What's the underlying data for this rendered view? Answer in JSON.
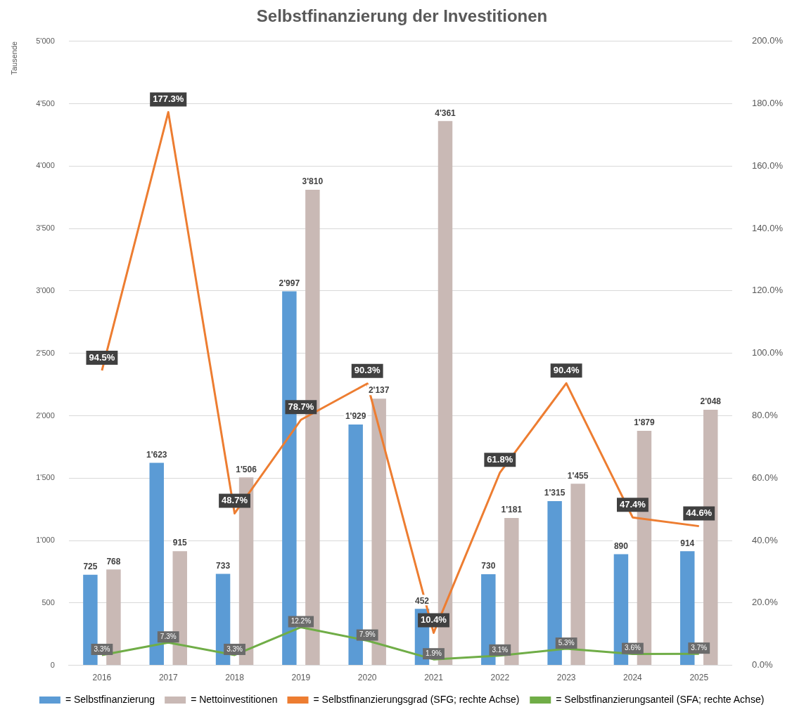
{
  "chart_data": {
    "type": "bar",
    "title": "Selbstfinanzierung der Investitionen",
    "ylabel": "Tausende",
    "categories": [
      "2016",
      "2017",
      "2018",
      "2019",
      "2020",
      "2021",
      "2022",
      "2023",
      "2024",
      "2025"
    ],
    "series": [
      {
        "name": "= Selbstfinanzierung",
        "color": "#5b9bd5",
        "values": [
          725,
          1623,
          733,
          2997,
          1929,
          452,
          730,
          1315,
          890,
          914
        ],
        "value_labels": [
          "725",
          "1'623",
          "733",
          "2'997",
          "1'929",
          "452",
          "730",
          "1'315",
          "890",
          "914"
        ]
      },
      {
        "name": "= Nettoinvestitionen",
        "color": "#c9b9b5",
        "values": [
          768,
          915,
          1506,
          3810,
          2137,
          4361,
          1181,
          1455,
          1879,
          2048
        ],
        "value_labels": [
          "768",
          "915",
          "1'506",
          "3'810",
          "2'137",
          "4'361",
          "1'181",
          "1'455",
          "1'879",
          "2'048"
        ]
      },
      {
        "name": "= Selbstfinanzierungsgrad (SFG; rechte Achse)",
        "type": "line",
        "axis": "y2",
        "color": "#ed7d31",
        "values": [
          94.5,
          177.3,
          48.7,
          78.7,
          90.3,
          10.4,
          61.8,
          90.4,
          47.4,
          44.6
        ],
        "value_labels": [
          "94.5%",
          "177.3%",
          "48.7%",
          "78.7%",
          "90.3%",
          "10.4%",
          "61.8%",
          "90.4%",
          "47.4%",
          "44.6%"
        ]
      },
      {
        "name": "= Selbstfinanzierungsanteil (SFA; rechte Achse)",
        "type": "line",
        "axis": "y2",
        "color": "#70ad47",
        "values": [
          3.3,
          7.3,
          3.3,
          12.2,
          7.9,
          1.9,
          3.1,
          5.3,
          3.6,
          3.7
        ],
        "value_labels": [
          "3.3%",
          "7.3%",
          "3.3%",
          "12.2%",
          "7.9%",
          "1.9%",
          "3.1%",
          "5.3%",
          "3.6%",
          "3.7%"
        ]
      }
    ],
    "ylim": [
      0,
      5000
    ],
    "yticks": [
      0,
      500,
      {
        "value": 1000,
        "label": "1'000"
      },
      {
        "value": 1500,
        "label": "1'500"
      },
      {
        "value": 2000,
        "label": "2'000"
      },
      {
        "value": 2500,
        "label": "2'500"
      },
      {
        "value": 3000,
        "label": "3'000"
      },
      {
        "value": 3500,
        "label": "3'500"
      },
      {
        "value": 4000,
        "label": "4'000"
      },
      {
        "value": 4500,
        "label": "4'500"
      },
      {
        "value": 5000,
        "label": "5'000"
      }
    ],
    "y2lim": [
      0,
      200
    ],
    "y2ticks": [
      {
        "value": 0,
        "label": "0.0%"
      },
      {
        "value": 20,
        "label": "20.0%"
      },
      {
        "value": 40,
        "label": "40.0%"
      },
      {
        "value": 60,
        "label": "60.0%"
      },
      {
        "value": 80,
        "label": "80.0%"
      },
      {
        "value": 100,
        "label": "100.0%"
      },
      {
        "value": 120,
        "label": "120.0%"
      },
      {
        "value": 140,
        "label": "140.0%"
      },
      {
        "value": 160,
        "label": "160.0%"
      },
      {
        "value": 180,
        "label": "180.0%"
      },
      {
        "value": 200,
        "label": "200.0%"
      }
    ],
    "grid": "y",
    "legend": "bottom",
    "marker": "none",
    "line_style": "solid"
  }
}
